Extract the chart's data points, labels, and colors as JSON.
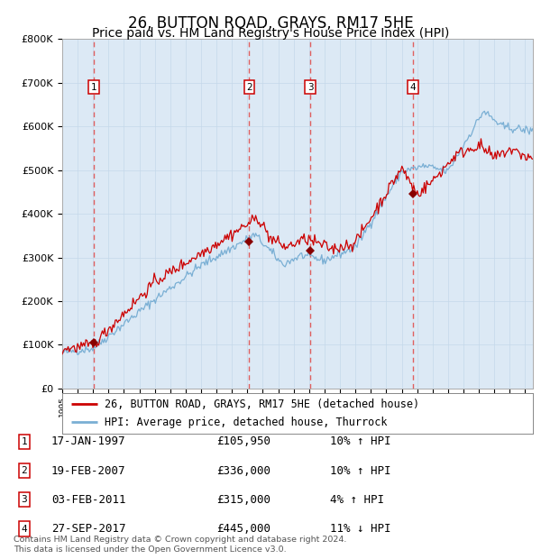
{
  "title": "26, BUTTON ROAD, GRAYS, RM17 5HE",
  "subtitle": "Price paid vs. HM Land Registry's House Price Index (HPI)",
  "ylim": [
    0,
    800000
  ],
  "yticks": [
    0,
    100000,
    200000,
    300000,
    400000,
    500000,
    600000,
    700000,
    800000
  ],
  "ytick_labels": [
    "£0",
    "£100K",
    "£200K",
    "£300K",
    "£400K",
    "£500K",
    "£600K",
    "£700K",
    "£800K"
  ],
  "x_start_year": 1995,
  "x_end_year": 2025,
  "transactions": [
    {
      "label": "1",
      "year": 1997.04,
      "price": 105950,
      "date_str": "17-JAN-1997",
      "price_str": "£105,950",
      "hpi_str": "10% ↑ HPI"
    },
    {
      "label": "2",
      "year": 2007.12,
      "price": 336000,
      "date_str": "19-FEB-2007",
      "price_str": "£336,000",
      "hpi_str": "10% ↑ HPI"
    },
    {
      "label": "3",
      "year": 2011.09,
      "price": 315000,
      "date_str": "03-FEB-2011",
      "price_str": "£315,000",
      "hpi_str": "4% ↑ HPI"
    },
    {
      "label": "4",
      "year": 2017.73,
      "price": 445000,
      "date_str": "27-SEP-2017",
      "price_str": "£445,000",
      "hpi_str": "11% ↓ HPI"
    }
  ],
  "red_line_color": "#cc0000",
  "blue_line_color": "#7aafd4",
  "marker_color": "#880000",
  "vline_color": "#e06060",
  "grid_color": "#c5d8ea",
  "plot_bg_color": "#dce9f5",
  "legend_label_red": "26, BUTTON ROAD, GRAYS, RM17 5HE (detached house)",
  "legend_label_blue": "HPI: Average price, detached house, Thurrock",
  "footer_text": "Contains HM Land Registry data © Crown copyright and database right 2024.\nThis data is licensed under the Open Government Licence v3.0.",
  "title_fontsize": 12,
  "subtitle_fontsize": 10,
  "tick_fontsize": 8,
  "legend_fontsize": 8.5,
  "table_fontsize": 9
}
